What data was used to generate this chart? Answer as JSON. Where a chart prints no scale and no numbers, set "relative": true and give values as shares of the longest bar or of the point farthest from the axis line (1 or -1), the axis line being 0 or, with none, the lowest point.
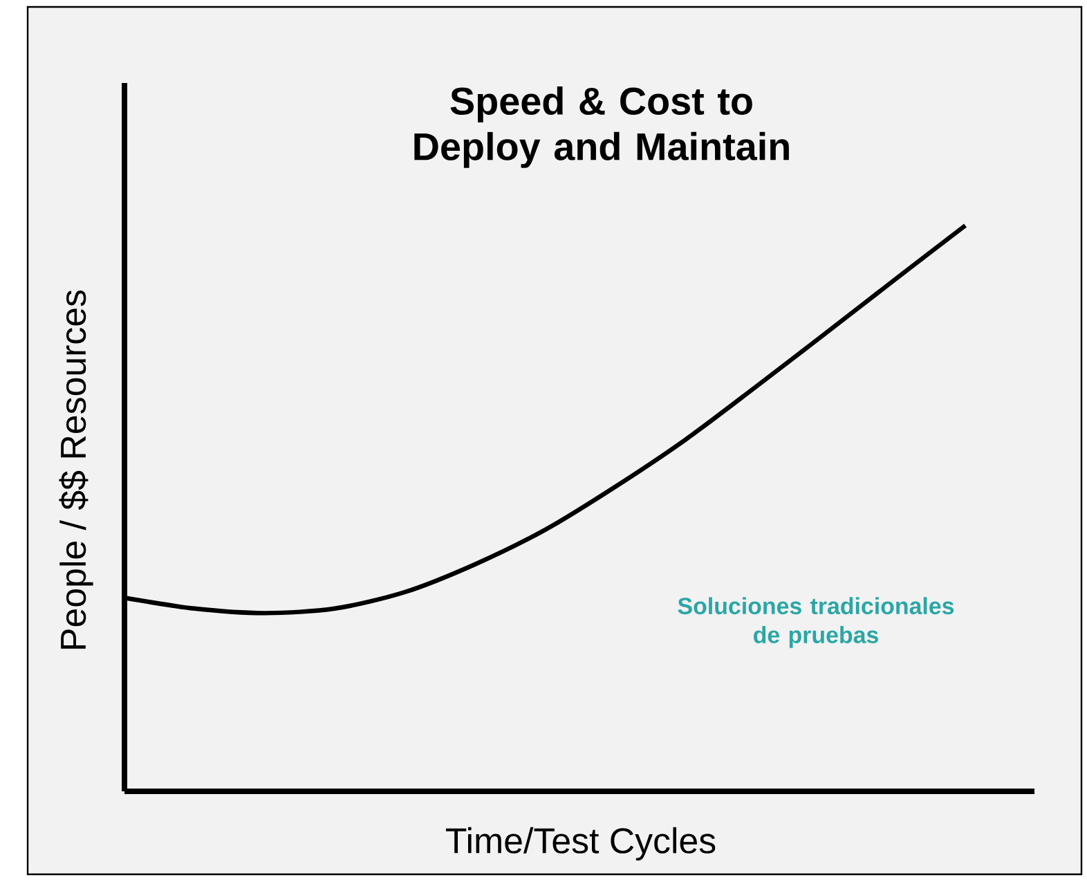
{
  "chart_data": {
    "type": "line",
    "title": "Speed & Cost to Deploy and Maintain",
    "xlabel": "Time/Test Cycles",
    "ylabel": "People / $$ Resources",
    "relative": true,
    "categories": [
      null,
      null,
      null,
      null,
      null,
      null,
      null,
      null,
      null,
      null,
      null,
      null,
      null
    ],
    "series": [
      {
        "color": "#000000",
        "values": [
          0.342,
          0.323,
          0.315,
          0.323,
          0.352,
          0.401,
          0.462,
          0.538,
          0.621,
          0.714,
          0.809,
          0.905,
          1.0
        ]
      }
    ],
    "annotations": [
      "Soluciones tradicionales de pruebas"
    ],
    "marker": "none",
    "line_style": "solid"
  }
}
